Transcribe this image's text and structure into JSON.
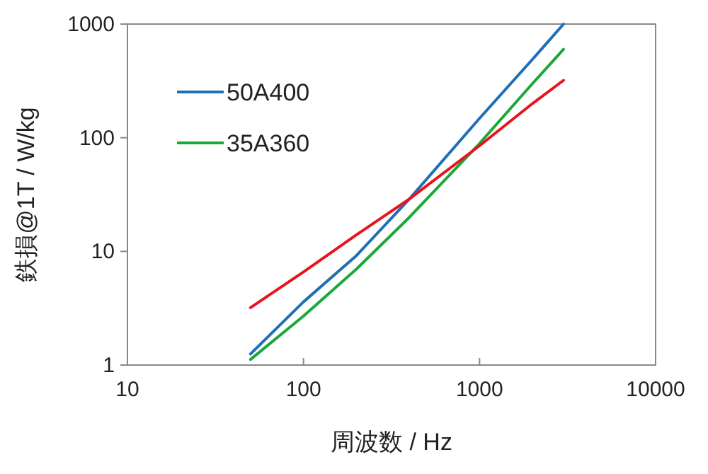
{
  "chart_data": {
    "type": "line",
    "xlabel": "周波数 / Hz",
    "ylabel": "鉄損@1T / W/kg",
    "log": "xy",
    "xlim": [
      10,
      10000
    ],
    "xticks": [
      10,
      100,
      1000,
      10000
    ],
    "ylim": [
      1,
      1000
    ],
    "yticks": [
      1,
      10,
      100,
      1000
    ],
    "x": [
      50,
      100,
      200,
      400,
      1000,
      2000,
      3000
    ],
    "series": [
      {
        "name": "50A400",
        "color": "#1f6fb8",
        "values": [
          1.25,
          3.6,
          9.2,
          29,
          148,
          490,
          1000
        ]
      },
      {
        "name": "35A360",
        "color": "#1aa83a",
        "values": [
          1.12,
          2.7,
          7,
          20,
          89,
          300,
          600
        ]
      },
      {
        "color": "#e8141c",
        "values": [
          3.2,
          6.6,
          14,
          29,
          85,
          200,
          320
        ]
      }
    ],
    "legend": "top left",
    "grid": false,
    "marker": "none",
    "line_style": "solid"
  }
}
